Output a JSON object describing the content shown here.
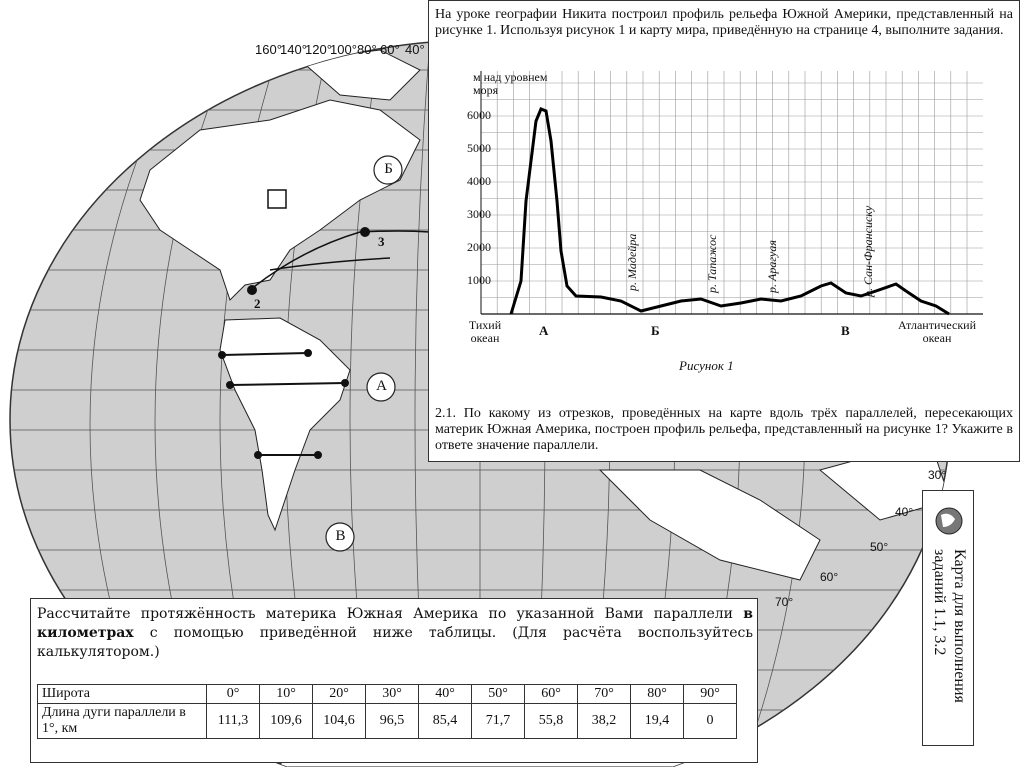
{
  "map": {
    "longitude_labels": [
      "160°",
      "140°",
      "120°",
      "100°",
      "80°",
      "60°",
      "40°"
    ],
    "latitude_labels": [
      "30°",
      "40°",
      "50°",
      "60°",
      "70°"
    ],
    "circle_labels": [
      "Б",
      "А",
      "В"
    ],
    "point_labels": [
      "2",
      "3"
    ]
  },
  "side_label": "Карта для выполнения заданий 1.1, 3.2",
  "task": {
    "intro": "На уроке географии Никита построил профиль рельефа Южной Америки, представленный на рисунке 1. Используя рисунок 1 и карту мира, приведённую на странице 4, выполните задания.",
    "figure": {
      "y_label": "м над уровнем моря",
      "y_ticks": [
        "6000",
        "5000",
        "4000",
        "3000",
        "2000",
        "1000"
      ],
      "rivers": [
        "р. Мадейра",
        "р. Тапажос",
        "р. Арагуая",
        "р. Сан-Франсиску"
      ],
      "left_end": "Тихий океан",
      "right_end": "Атлантический океан",
      "points": [
        "А",
        "Б",
        "В"
      ],
      "caption": "Рисунок 1"
    },
    "question": "2.1. По какому из отрезков, проведённых на карте вдоль трёх параллелей, пересекающих материк Южная Америка, построен профиль рельефа, представленный на рисунке 1? Укажите в ответе значение параллели."
  },
  "calc": {
    "text_before": "Рассчитайте протяжённость материка Южная Америка по указанной Вами параллели",
    "text_bold": "в километрах",
    "text_after": "с помощью приведённой ниже таблицы. (Для расчёта воспользуйтесь калькулятором.)",
    "table": {
      "rows": [
        [
          "Широта",
          "0°",
          "10°",
          "20°",
          "30°",
          "40°",
          "50°",
          "60°",
          "70°",
          "80°",
          "90°"
        ],
        [
          "Длина дуги параллели в 1°, км",
          "111,3",
          "109,6",
          "104,6",
          "96,5",
          "85,4",
          "71,7",
          "55,8",
          "38,2",
          "19,4",
          "0"
        ]
      ]
    }
  }
}
